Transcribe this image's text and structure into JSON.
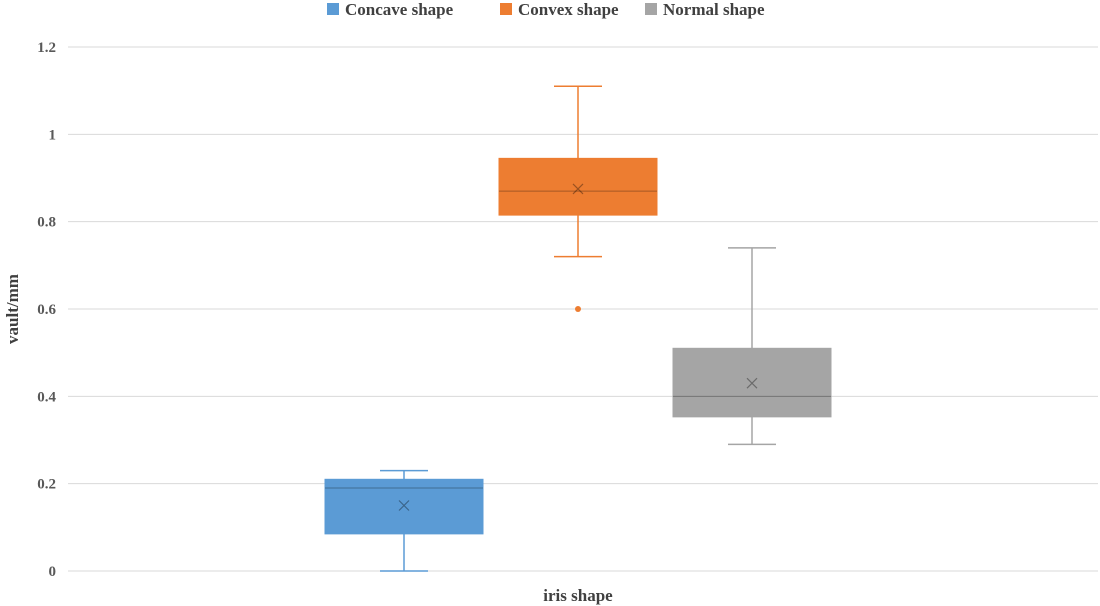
{
  "chart_data": {
    "type": "boxplot",
    "xlabel": "iris shape",
    "ylabel": "vault/mm",
    "ylim": [
      0,
      1.2
    ],
    "yticks": [
      0,
      0.2,
      0.4,
      0.6,
      0.8,
      1,
      1.2
    ],
    "ytick_labels": [
      "0",
      "0.2",
      "0.4",
      "0.6",
      "0.8",
      "1",
      "1.2"
    ],
    "grid": true,
    "legend_position": "top",
    "series": [
      {
        "name": "Concave shape",
        "color": "#5B9BD5",
        "min": 0,
        "q1": 0.085,
        "median": 0.19,
        "q3": 0.21,
        "max": 0.23,
        "mean": 0.15,
        "outliers": []
      },
      {
        "name": "Convex shape",
        "color": "#ED7D31",
        "min": 0.72,
        "q1": 0.815,
        "median": 0.87,
        "q3": 0.945,
        "max": 1.11,
        "mean": 0.875,
        "outliers": [
          0.6
        ]
      },
      {
        "name": "Normal shape",
        "color": "#A5A5A5",
        "min": 0.29,
        "q1": 0.353,
        "median": 0.4,
        "q3": 0.51,
        "max": 0.74,
        "mean": 0.43,
        "outliers": []
      }
    ]
  }
}
